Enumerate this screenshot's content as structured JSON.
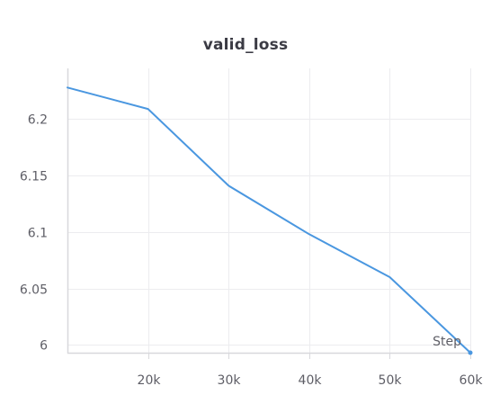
{
  "chart_data": {
    "type": "line",
    "title": "valid_loss",
    "xlabel": "Step",
    "ylabel": "",
    "x_tick_labels": [
      "20k",
      "30k",
      "40k",
      "50k",
      "60k"
    ],
    "x_ticks": [
      20000,
      30000,
      40000,
      50000,
      60000
    ],
    "y_tick_labels": [
      "6",
      "6.05",
      "6.1",
      "6.15",
      "6.2"
    ],
    "y_ticks": [
      6.0,
      6.05,
      6.1,
      6.15,
      6.2
    ],
    "xlim": [
      10000,
      60000
    ],
    "ylim": [
      5.993,
      6.245
    ],
    "grid": true,
    "series": [
      {
        "x": [
          10000,
          20000,
          30000,
          40000,
          50000,
          60000
        ],
        "y": [
          6.228,
          6.209,
          6.141,
          6.098,
          6.06,
          5.993
        ],
        "color": "#4a97e0"
      }
    ]
  }
}
